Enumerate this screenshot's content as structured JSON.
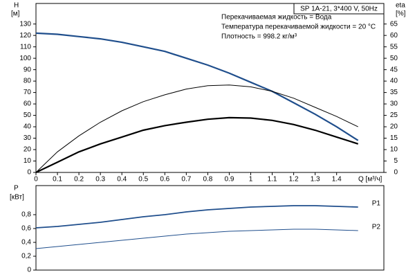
{
  "chart_data": [
    {
      "type": "line",
      "title": "SP 1A-21, 3*400 V, 50Hz",
      "annotations": [
        "Перекачиваемая жидкость = Вода",
        "Температура перекачиваемой жидкости = 20 °C",
        "Плотность = 998.2 кг/м³"
      ],
      "x_label": "Q [м³/ч]",
      "y_label": "H",
      "y_unit": "[м]",
      "y2_label": "eta",
      "y2_unit": "[%]",
      "x": [
        0,
        0.1,
        0.2,
        0.3,
        0.4,
        0.5,
        0.6,
        0.7,
        0.8,
        0.9,
        1.0,
        1.1,
        1.2,
        1.3,
        1.4,
        1.5
      ],
      "xlim": [
        0,
        1.62
      ],
      "xticks": [
        0,
        0.1,
        0.2,
        0.3,
        0.4,
        0.5,
        0.6,
        0.7,
        0.8,
        0.9,
        1,
        1.1,
        1.2,
        1.3,
        1.4
      ],
      "ylim": [
        0,
        148
      ],
      "yticks": [
        0,
        10,
        20,
        30,
        40,
        50,
        60,
        70,
        80,
        90,
        100,
        110,
        120,
        130
      ],
      "y2lim": [
        0,
        74
      ],
      "y2ticks": [
        0,
        5,
        10,
        15,
        20,
        25,
        30,
        35,
        40,
        45,
        50,
        55,
        60,
        65
      ],
      "grid": false,
      "series": [
        {
          "color": "#1f4e8c",
          "line_width": 2.2,
          "values": [
            122,
            121,
            119,
            117,
            114,
            110,
            106,
            100,
            94,
            87,
            79,
            71,
            61,
            51,
            40,
            28
          ]
        },
        {
          "color": "#000000",
          "line_width": 1,
          "axis": "y2",
          "values": [
            0,
            9,
            16,
            22,
            27,
            31,
            34,
            36.5,
            38,
            38.3,
            37.5,
            35.5,
            32.5,
            28.5,
            24.5,
            20
          ]
        },
        {
          "color": "#000000",
          "line_width": 2.2,
          "axis": "y2",
          "values": [
            0,
            4.5,
            9,
            12.5,
            15.5,
            18.5,
            20.5,
            22,
            23.3,
            24,
            23.8,
            22.8,
            21,
            18.5,
            15.5,
            12.5
          ]
        }
      ]
    },
    {
      "type": "line",
      "y_label": "P",
      "y_unit": "[кВт]",
      "x": [
        0,
        0.1,
        0.2,
        0.3,
        0.4,
        0.5,
        0.6,
        0.7,
        0.8,
        0.9,
        1.0,
        1.1,
        1.2,
        1.3,
        1.4,
        1.5
      ],
      "xlim": [
        0,
        1.62
      ],
      "ylim": [
        0,
        1.22
      ],
      "yticks": [
        0,
        {
          "value": 0.2,
          "label": "0,2"
        },
        {
          "value": 0.4,
          "label": "0,4"
        },
        {
          "value": 0.6,
          "label": "0,6"
        },
        {
          "value": 0.8,
          "label": "0,8"
        }
      ],
      "grid": false,
      "series": [
        {
          "name": "P1",
          "color": "#1f4e8c",
          "line_width": 1.8,
          "values": [
            0.61,
            0.63,
            0.66,
            0.69,
            0.73,
            0.77,
            0.8,
            0.84,
            0.87,
            0.89,
            0.91,
            0.92,
            0.93,
            0.93,
            0.92,
            0.91
          ]
        },
        {
          "name": "P2",
          "color": "#1f4e8c",
          "line_width": 1,
          "values": [
            0.31,
            0.34,
            0.37,
            0.4,
            0.43,
            0.46,
            0.49,
            0.52,
            0.54,
            0.56,
            0.57,
            0.58,
            0.59,
            0.59,
            0.58,
            0.57
          ]
        }
      ]
    }
  ]
}
